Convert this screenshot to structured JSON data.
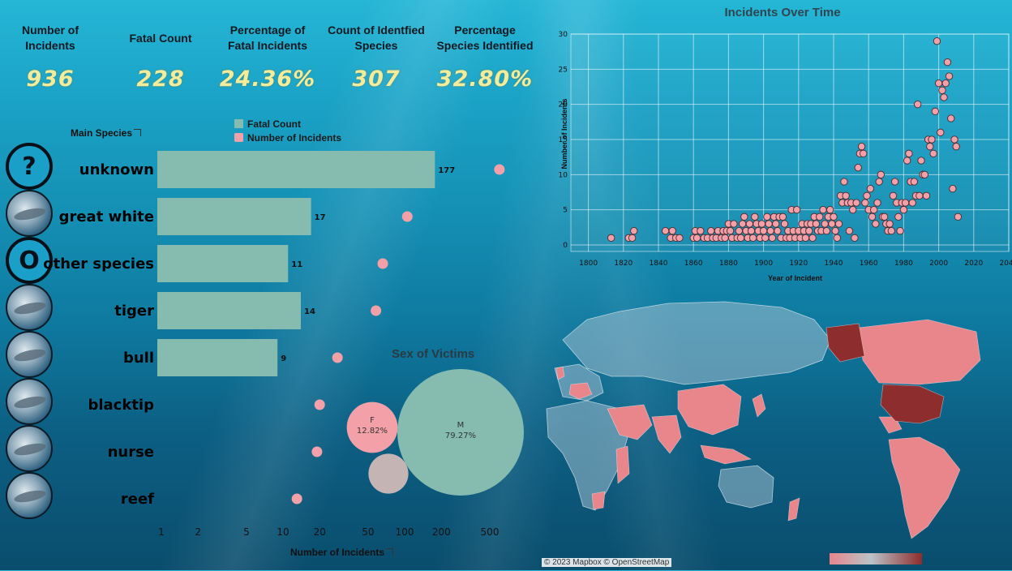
{
  "kpis": [
    {
      "label": "Number of\nIncidents",
      "value": "936"
    },
    {
      "label": "Fatal Count",
      "value": "228"
    },
    {
      "label": "Percentage of\nFatal Incidents",
      "value": "24.36%"
    },
    {
      "label": "Count of Identfied\nSpecies",
      "value": "307"
    },
    {
      "label": "Percentage\nSpecies Identified",
      "value": "32.80%"
    }
  ],
  "species_chart": {
    "header": "Main Species",
    "xlabel": "Number of Incidents",
    "legend": {
      "fatal": "Fatal Count",
      "incidents": "Number of Incidents"
    },
    "colors": {
      "fatal": "#86bcb0",
      "incidents": "#f4a0a8"
    }
  },
  "avatars": [
    {
      "name": "question-icon",
      "symbol": "?"
    },
    {
      "name": "great-white-photo",
      "symbol": ""
    },
    {
      "name": "other-species-icon",
      "symbol": "O"
    },
    {
      "name": "tiger-shark-photo",
      "symbol": ""
    },
    {
      "name": "bull-shark-photo",
      "symbol": ""
    },
    {
      "name": "blacktip-shark-photo",
      "symbol": ""
    },
    {
      "name": "nurse-shark-photo",
      "symbol": ""
    },
    {
      "name": "reef-shark-photo",
      "symbol": ""
    }
  ],
  "sex_chart": {
    "title": "Sex of Victims",
    "bubbles": [
      {
        "label": "M",
        "pct": "79.27%",
        "share": 0.7927,
        "color": "#86bcb0"
      },
      {
        "label": "F",
        "pct": "12.82%",
        "share": 0.1282,
        "color": "#f4a0a8"
      },
      {
        "label": "",
        "pct": "",
        "share": 0.0791,
        "color": "#c4b4b4"
      }
    ]
  },
  "time_chart": {
    "title": "Incidents Over Time",
    "xlabel": "Year of Incident",
    "ylabel": "Number of Incidents"
  },
  "map": {
    "credit": "© 2023 Mapbox © OpenStreetMap"
  },
  "chart_data": [
    {
      "type": "bar",
      "scale": "log",
      "categories": [
        "unknown",
        "great white",
        "other species",
        "tiger",
        "bull",
        "blacktip",
        "nurse",
        "reef"
      ],
      "series": [
        {
          "name": "Fatal Count",
          "values": [
            177,
            17,
            11,
            14,
            9,
            null,
            null,
            null
          ]
        },
        {
          "name": "Number of Incidents",
          "values": [
            600,
            105,
            66,
            58,
            28,
            20,
            19,
            13
          ]
        }
      ],
      "xlabel": "Number of Incidents",
      "xticks": [
        1,
        2,
        5,
        10,
        20,
        50,
        100,
        200,
        500
      ]
    },
    {
      "type": "scatter",
      "title": "Incidents Over Time",
      "xlabel": "Year of Incident",
      "ylabel": "Number of Incidents",
      "xlim": [
        1790,
        2040
      ],
      "ylim": [
        0,
        30
      ],
      "xticks": [
        1800,
        1820,
        1840,
        1860,
        1880,
        1900,
        1920,
        1940,
        1960,
        1980,
        2000,
        2020,
        2040
      ],
      "yticks": [
        0,
        5,
        10,
        15,
        20,
        25,
        30
      ],
      "points": [
        [
          1813,
          1
        ],
        [
          1823,
          1
        ],
        [
          1825,
          1
        ],
        [
          1826,
          2
        ],
        [
          1844,
          2
        ],
        [
          1847,
          1
        ],
        [
          1848,
          2
        ],
        [
          1850,
          1
        ],
        [
          1852,
          1
        ],
        [
          1860,
          1
        ],
        [
          1861,
          2
        ],
        [
          1862,
          1
        ],
        [
          1864,
          2
        ],
        [
          1866,
          1
        ],
        [
          1868,
          1
        ],
        [
          1870,
          2
        ],
        [
          1871,
          1
        ],
        [
          1873,
          1
        ],
        [
          1874,
          2
        ],
        [
          1876,
          1
        ],
        [
          1877,
          2
        ],
        [
          1878,
          1
        ],
        [
          1879,
          2
        ],
        [
          1880,
          3
        ],
        [
          1881,
          2
        ],
        [
          1882,
          1
        ],
        [
          1883,
          3
        ],
        [
          1885,
          1
        ],
        [
          1886,
          2
        ],
        [
          1887,
          1
        ],
        [
          1888,
          3
        ],
        [
          1889,
          4
        ],
        [
          1890,
          2
        ],
        [
          1891,
          1
        ],
        [
          1892,
          3
        ],
        [
          1893,
          2
        ],
        [
          1894,
          1
        ],
        [
          1895,
          4
        ],
        [
          1896,
          3
        ],
        [
          1897,
          2
        ],
        [
          1898,
          1
        ],
        [
          1899,
          3
        ],
        [
          1900,
          2
        ],
        [
          1901,
          1
        ],
        [
          1902,
          4
        ],
        [
          1903,
          3
        ],
        [
          1904,
          2
        ],
        [
          1905,
          1
        ],
        [
          1906,
          4
        ],
        [
          1907,
          3
        ],
        [
          1908,
          2
        ],
        [
          1909,
          4
        ],
        [
          1910,
          1
        ],
        [
          1911,
          4
        ],
        [
          1912,
          3
        ],
        [
          1913,
          1
        ],
        [
          1914,
          2
        ],
        [
          1915,
          1
        ],
        [
          1916,
          5
        ],
        [
          1917,
          2
        ],
        [
          1918,
          1
        ],
        [
          1919,
          5
        ],
        [
          1920,
          2
        ],
        [
          1921,
          1
        ],
        [
          1922,
          3
        ],
        [
          1923,
          2
        ],
        [
          1924,
          1
        ],
        [
          1925,
          3
        ],
        [
          1926,
          2
        ],
        [
          1927,
          3
        ],
        [
          1928,
          1
        ],
        [
          1929,
          4
        ],
        [
          1930,
          3
        ],
        [
          1931,
          2
        ],
        [
          1932,
          4
        ],
        [
          1933,
          2
        ],
        [
          1934,
          5
        ],
        [
          1935,
          3
        ],
        [
          1936,
          2
        ],
        [
          1937,
          4
        ],
        [
          1938,
          5
        ],
        [
          1939,
          3
        ],
        [
          1940,
          4
        ],
        [
          1941,
          2
        ],
        [
          1942,
          1
        ],
        [
          1943,
          3
        ],
        [
          1944,
          7
        ],
        [
          1945,
          6
        ],
        [
          1946,
          9
        ],
        [
          1947,
          7
        ],
        [
          1948,
          6
        ],
        [
          1949,
          2
        ],
        [
          1950,
          6
        ],
        [
          1951,
          5
        ],
        [
          1952,
          1
        ],
        [
          1953,
          6
        ],
        [
          1954,
          11
        ],
        [
          1955,
          13
        ],
        [
          1956,
          14
        ],
        [
          1957,
          13
        ],
        [
          1958,
          6
        ],
        [
          1959,
          7
        ],
        [
          1960,
          5
        ],
        [
          1961,
          8
        ],
        [
          1962,
          4
        ],
        [
          1963,
          5
        ],
        [
          1964,
          3
        ],
        [
          1965,
          6
        ],
        [
          1966,
          9
        ],
        [
          1967,
          10
        ],
        [
          1968,
          4
        ],
        [
          1969,
          4
        ],
        [
          1970,
          3
        ],
        [
          1971,
          2
        ],
        [
          1972,
          3
        ],
        [
          1973,
          2
        ],
        [
          1974,
          7
        ],
        [
          1975,
          9
        ],
        [
          1976,
          6
        ],
        [
          1977,
          4
        ],
        [
          1978,
          2
        ],
        [
          1979,
          6
        ],
        [
          1980,
          5
        ],
        [
          1981,
          6
        ],
        [
          1982,
          12
        ],
        [
          1983,
          13
        ],
        [
          1984,
          9
        ],
        [
          1985,
          6
        ],
        [
          1986,
          9
        ],
        [
          1987,
          7
        ],
        [
          1988,
          20
        ],
        [
          1989,
          7
        ],
        [
          1990,
          12
        ],
        [
          1991,
          10
        ],
        [
          1992,
          10
        ],
        [
          1993,
          7
        ],
        [
          1994,
          15
        ],
        [
          1995,
          14
        ],
        [
          1996,
          15
        ],
        [
          1997,
          13
        ],
        [
          1998,
          19
        ],
        [
          1999,
          29
        ],
        [
          2000,
          23
        ],
        [
          2001,
          16
        ],
        [
          2002,
          22
        ],
        [
          2003,
          21
        ],
        [
          2004,
          23
        ],
        [
          2005,
          26
        ],
        [
          2006,
          24
        ],
        [
          2007,
          18
        ],
        [
          2008,
          8
        ],
        [
          2009,
          15
        ],
        [
          2010,
          14
        ],
        [
          2011,
          4
        ]
      ]
    },
    {
      "type": "bubble",
      "title": "Sex of Victims",
      "categories": [
        "M",
        "F",
        ""
      ],
      "values": [
        79.27,
        12.82,
        7.91
      ]
    }
  ]
}
